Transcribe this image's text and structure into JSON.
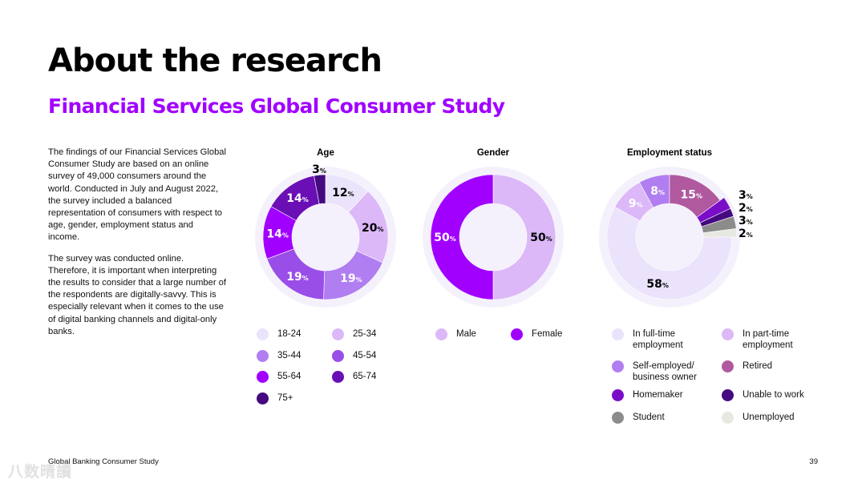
{
  "page": {
    "title": "About the research",
    "subtitle": "Financial Services Global Consumer Study",
    "body_paragraphs": [
      "The findings of our Financial Services Global Consumer Study are based on an online survey of 49,000 consumers around the world. Conducted in July and August 2022, the survey included a balanced representation of consumers with respect to age, gender, employment status and income.",
      "The survey was conducted online. Therefore, it is important when interpreting the results to consider that a large number of the respondents are digitally-savvy. This is especially relevant when it comes to the use of digital banking channels and digital-only banks."
    ],
    "footer": "Global Banking Consumer Study",
    "page_number": "39",
    "watermark": "八数晴讀"
  },
  "chart_data": [
    {
      "type": "pie",
      "title": "Age",
      "unit": "%",
      "slices": [
        {
          "label": "18-24",
          "value": 12,
          "color": "#ebe3fb"
        },
        {
          "label": "25-34",
          "value": 20,
          "color": "#dcb8f8"
        },
        {
          "label": "35-44",
          "value": 19,
          "color": "#b07ef0"
        },
        {
          "label": "45-54",
          "value": 19,
          "color": "#9a4ee8"
        },
        {
          "label": "55-64",
          "value": 14,
          "color": "#a100ff"
        },
        {
          "label": "65-74",
          "value": 14,
          "color": "#6a0fb5"
        },
        {
          "label": "75+",
          "value": 3,
          "color": "#450a80"
        }
      ]
    },
    {
      "type": "pie",
      "title": "Gender",
      "unit": "%",
      "slices": [
        {
          "label": "Male",
          "value": 50,
          "color": "#dcb8f8"
        },
        {
          "label": "Female",
          "value": 50,
          "color": "#a100ff"
        }
      ]
    },
    {
      "type": "pie",
      "title": "Employment status",
      "unit": "%",
      "slices": [
        {
          "label": "In full-time employment",
          "value": 58,
          "color": "#ebe3fb"
        },
        {
          "label": "In part-time employment",
          "value": 9,
          "color": "#dcb8f8"
        },
        {
          "label": "Self-employed/ business owner",
          "value": 8,
          "color": "#b07ef0"
        },
        {
          "label": "Retired",
          "value": 15,
          "color": "#b0599f"
        },
        {
          "label": "Homemaker",
          "value": 3,
          "color": "#7a0ec8"
        },
        {
          "label": "Unable to work",
          "value": 2,
          "color": "#450a80"
        },
        {
          "label": "Student",
          "value": 3,
          "color": "#8c8c8c"
        },
        {
          "label": "Unemployed",
          "value": 2,
          "color": "#e8e8e2"
        }
      ]
    }
  ]
}
